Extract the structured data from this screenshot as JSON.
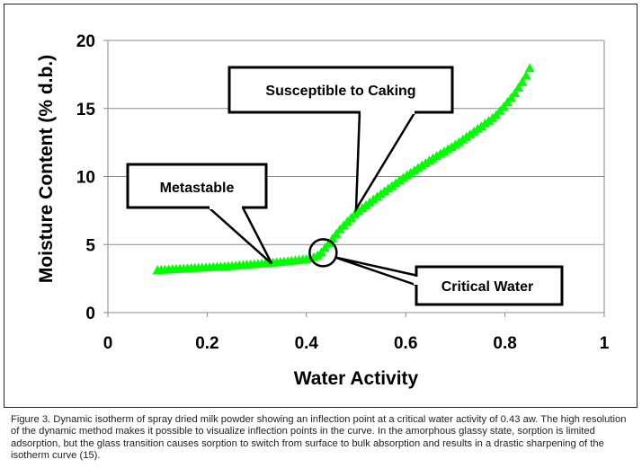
{
  "chart_data": {
    "type": "scatter",
    "title": "",
    "xlabel": "Water Activity",
    "ylabel": "Moisture Content (% d.b.)",
    "xlim": [
      0,
      1
    ],
    "ylim": [
      0,
      20
    ],
    "xticks": [
      "0",
      "0.2",
      "0.4",
      "0.6",
      "0.8",
      "1"
    ],
    "yticks": [
      "0",
      "5",
      "10",
      "15",
      "20"
    ],
    "grid": "horizontal",
    "marker": "triangle",
    "series_color": "#00ff00",
    "series": [
      {
        "x": [
          0.1,
          0.15,
          0.2,
          0.25,
          0.3,
          0.35,
          0.4,
          0.42,
          0.43,
          0.45,
          0.47,
          0.5,
          0.55,
          0.6,
          0.65,
          0.7,
          0.75,
          0.78,
          0.8,
          0.82,
          0.84,
          0.855
        ],
        "y": [
          3.1,
          3.2,
          3.3,
          3.4,
          3.55,
          3.7,
          3.9,
          4.1,
          4.4,
          5.3,
          6.2,
          7.3,
          8.7,
          10.0,
          11.2,
          12.3,
          13.6,
          14.4,
          15.2,
          16.1,
          17.2,
          18.3
        ]
      }
    ],
    "annotations": [
      {
        "text": "Metastable",
        "x": 0.33,
        "y": 3.6
      },
      {
        "text": "Susceptible to Caking",
        "x": 0.5,
        "y": 7.6
      },
      {
        "text": "Critical Water",
        "x": 0.43,
        "y": 4.4
      }
    ]
  },
  "caption": "Figure 3. Dynamic isotherm of spray dried milk powder showing an inflection point at a critical water activity of 0.43 aw. The high resolution of the dynamic method makes it possible to visualize inflection points in the curve. In the amorphous glassy state, sorption is limited adsorption, but the glass transition causes sorption to switch from surface to bulk absorption and results in a drastic sharpening of the isotherm curve (15)."
}
